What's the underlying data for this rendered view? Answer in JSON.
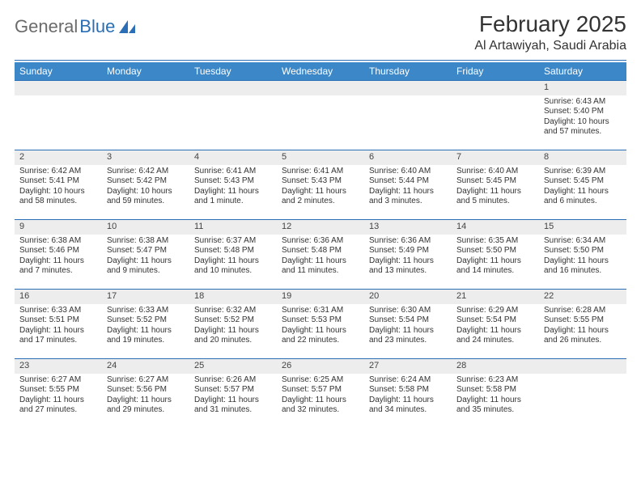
{
  "brand": {
    "left": "General",
    "right": "Blue"
  },
  "title": "February 2025",
  "location": "Al Artawiyah, Saudi Arabia",
  "colors": {
    "header_bg": "#3b87c8",
    "header_text": "#ffffff",
    "daynum_bg": "#ededed",
    "divider": "#2a6fb5",
    "body_text": "#333333"
  },
  "weekdays": [
    "Sunday",
    "Monday",
    "Tuesday",
    "Wednesday",
    "Thursday",
    "Friday",
    "Saturday"
  ],
  "weeks": [
    [
      {
        "day": ""
      },
      {
        "day": ""
      },
      {
        "day": ""
      },
      {
        "day": ""
      },
      {
        "day": ""
      },
      {
        "day": ""
      },
      {
        "day": "1",
        "sunrise": "Sunrise: 6:43 AM",
        "sunset": "Sunset: 5:40 PM",
        "daylight": "Daylight: 10 hours and 57 minutes."
      }
    ],
    [
      {
        "day": "2",
        "sunrise": "Sunrise: 6:42 AM",
        "sunset": "Sunset: 5:41 PM",
        "daylight": "Daylight: 10 hours and 58 minutes."
      },
      {
        "day": "3",
        "sunrise": "Sunrise: 6:42 AM",
        "sunset": "Sunset: 5:42 PM",
        "daylight": "Daylight: 10 hours and 59 minutes."
      },
      {
        "day": "4",
        "sunrise": "Sunrise: 6:41 AM",
        "sunset": "Sunset: 5:43 PM",
        "daylight": "Daylight: 11 hours and 1 minute."
      },
      {
        "day": "5",
        "sunrise": "Sunrise: 6:41 AM",
        "sunset": "Sunset: 5:43 PM",
        "daylight": "Daylight: 11 hours and 2 minutes."
      },
      {
        "day": "6",
        "sunrise": "Sunrise: 6:40 AM",
        "sunset": "Sunset: 5:44 PM",
        "daylight": "Daylight: 11 hours and 3 minutes."
      },
      {
        "day": "7",
        "sunrise": "Sunrise: 6:40 AM",
        "sunset": "Sunset: 5:45 PM",
        "daylight": "Daylight: 11 hours and 5 minutes."
      },
      {
        "day": "8",
        "sunrise": "Sunrise: 6:39 AM",
        "sunset": "Sunset: 5:45 PM",
        "daylight": "Daylight: 11 hours and 6 minutes."
      }
    ],
    [
      {
        "day": "9",
        "sunrise": "Sunrise: 6:38 AM",
        "sunset": "Sunset: 5:46 PM",
        "daylight": "Daylight: 11 hours and 7 minutes."
      },
      {
        "day": "10",
        "sunrise": "Sunrise: 6:38 AM",
        "sunset": "Sunset: 5:47 PM",
        "daylight": "Daylight: 11 hours and 9 minutes."
      },
      {
        "day": "11",
        "sunrise": "Sunrise: 6:37 AM",
        "sunset": "Sunset: 5:48 PM",
        "daylight": "Daylight: 11 hours and 10 minutes."
      },
      {
        "day": "12",
        "sunrise": "Sunrise: 6:36 AM",
        "sunset": "Sunset: 5:48 PM",
        "daylight": "Daylight: 11 hours and 11 minutes."
      },
      {
        "day": "13",
        "sunrise": "Sunrise: 6:36 AM",
        "sunset": "Sunset: 5:49 PM",
        "daylight": "Daylight: 11 hours and 13 minutes."
      },
      {
        "day": "14",
        "sunrise": "Sunrise: 6:35 AM",
        "sunset": "Sunset: 5:50 PM",
        "daylight": "Daylight: 11 hours and 14 minutes."
      },
      {
        "day": "15",
        "sunrise": "Sunrise: 6:34 AM",
        "sunset": "Sunset: 5:50 PM",
        "daylight": "Daylight: 11 hours and 16 minutes."
      }
    ],
    [
      {
        "day": "16",
        "sunrise": "Sunrise: 6:33 AM",
        "sunset": "Sunset: 5:51 PM",
        "daylight": "Daylight: 11 hours and 17 minutes."
      },
      {
        "day": "17",
        "sunrise": "Sunrise: 6:33 AM",
        "sunset": "Sunset: 5:52 PM",
        "daylight": "Daylight: 11 hours and 19 minutes."
      },
      {
        "day": "18",
        "sunrise": "Sunrise: 6:32 AM",
        "sunset": "Sunset: 5:52 PM",
        "daylight": "Daylight: 11 hours and 20 minutes."
      },
      {
        "day": "19",
        "sunrise": "Sunrise: 6:31 AM",
        "sunset": "Sunset: 5:53 PM",
        "daylight": "Daylight: 11 hours and 22 minutes."
      },
      {
        "day": "20",
        "sunrise": "Sunrise: 6:30 AM",
        "sunset": "Sunset: 5:54 PM",
        "daylight": "Daylight: 11 hours and 23 minutes."
      },
      {
        "day": "21",
        "sunrise": "Sunrise: 6:29 AM",
        "sunset": "Sunset: 5:54 PM",
        "daylight": "Daylight: 11 hours and 24 minutes."
      },
      {
        "day": "22",
        "sunrise": "Sunrise: 6:28 AM",
        "sunset": "Sunset: 5:55 PM",
        "daylight": "Daylight: 11 hours and 26 minutes."
      }
    ],
    [
      {
        "day": "23",
        "sunrise": "Sunrise: 6:27 AM",
        "sunset": "Sunset: 5:55 PM",
        "daylight": "Daylight: 11 hours and 27 minutes."
      },
      {
        "day": "24",
        "sunrise": "Sunrise: 6:27 AM",
        "sunset": "Sunset: 5:56 PM",
        "daylight": "Daylight: 11 hours and 29 minutes."
      },
      {
        "day": "25",
        "sunrise": "Sunrise: 6:26 AM",
        "sunset": "Sunset: 5:57 PM",
        "daylight": "Daylight: 11 hours and 31 minutes."
      },
      {
        "day": "26",
        "sunrise": "Sunrise: 6:25 AM",
        "sunset": "Sunset: 5:57 PM",
        "daylight": "Daylight: 11 hours and 32 minutes."
      },
      {
        "day": "27",
        "sunrise": "Sunrise: 6:24 AM",
        "sunset": "Sunset: 5:58 PM",
        "daylight": "Daylight: 11 hours and 34 minutes."
      },
      {
        "day": "28",
        "sunrise": "Sunrise: 6:23 AM",
        "sunset": "Sunset: 5:58 PM",
        "daylight": "Daylight: 11 hours and 35 minutes."
      },
      {
        "day": ""
      }
    ]
  ]
}
